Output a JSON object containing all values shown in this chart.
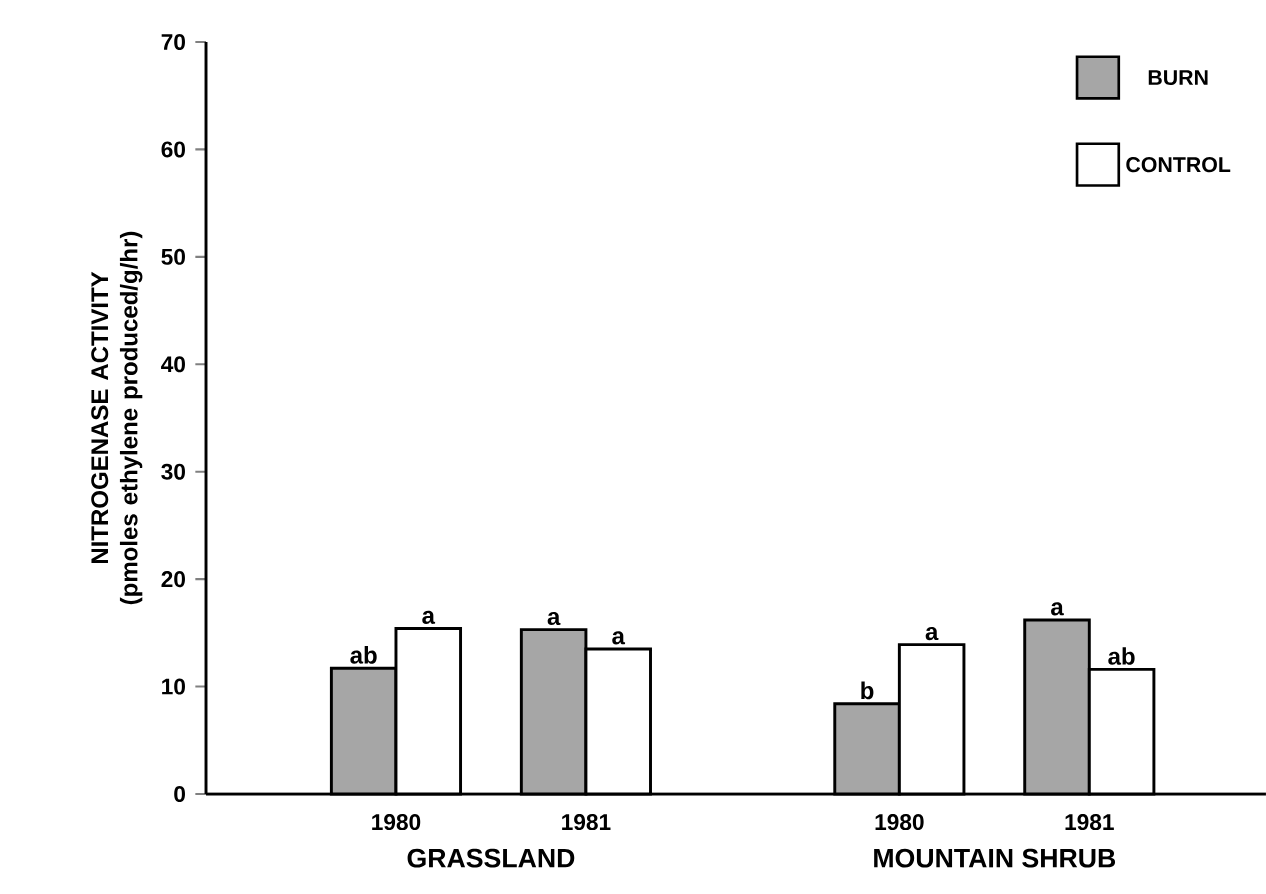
{
  "chart_data": {
    "type": "bar",
    "ylabel": "NITROGENASE ACTIVITY (pmoles ethylene produced/g/hr)",
    "categories": [
      "1980",
      "1981",
      "1980",
      "1981"
    ],
    "series": [
      {
        "name": "BURN",
        "color": "#a6a6a6",
        "values": [
          11.7,
          15.3,
          8.4,
          16.2
        ],
        "value_labels": [
          "ab",
          "a",
          "b",
          "a"
        ]
      },
      {
        "name": "CONTROL",
        "color": "#ffffff",
        "values": [
          15.4,
          13.5,
          13.9,
          11.6
        ],
        "value_labels": [
          "a",
          "a",
          "a",
          "ab"
        ]
      }
    ],
    "annotations": [
      "GRASSLAND",
      "MOUNTAIN SHRUB"
    ],
    "ylim": [
      0,
      70
    ],
    "yticks": [
      0,
      10,
      20,
      30,
      40,
      50,
      60,
      70
    ],
    "grid": false,
    "legend": "top right"
  }
}
